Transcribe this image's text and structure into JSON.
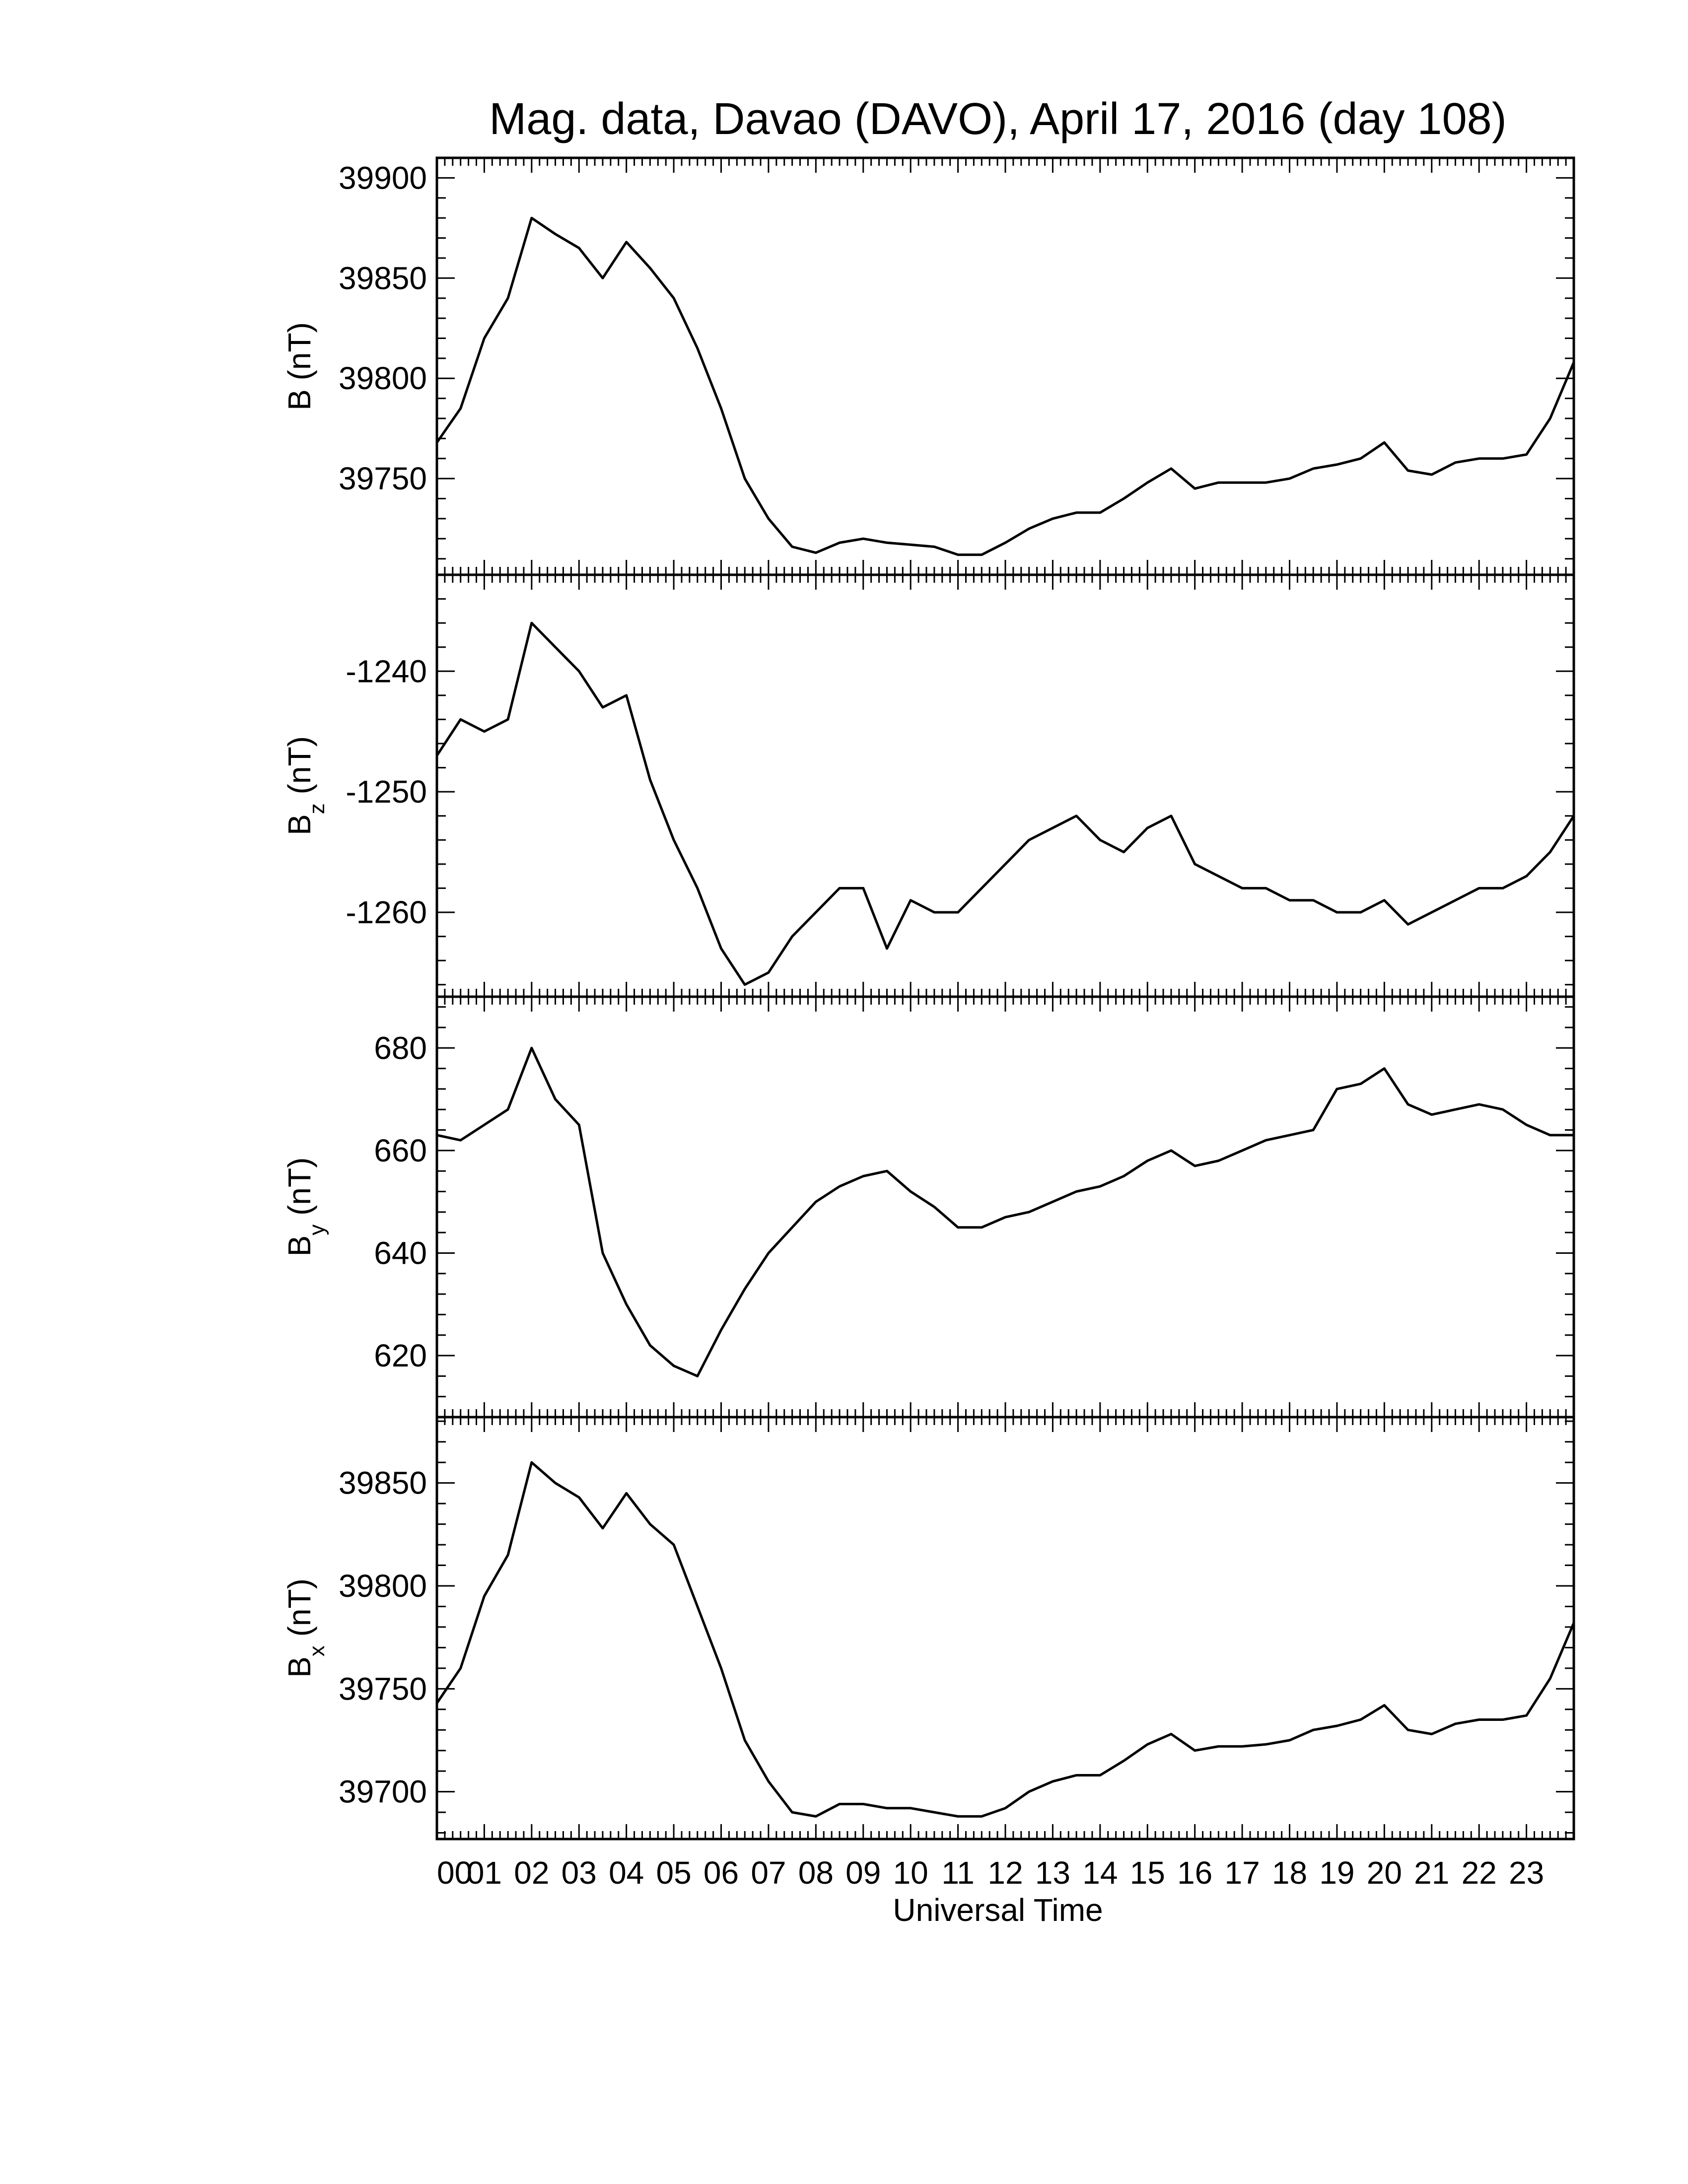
{
  "chart_data": {
    "type": "line",
    "title": "Mag. data, Davao (DAVO), April 17, 2016 (day 108)",
    "xlabel": "Universal Time",
    "x_tick_labels": [
      "00",
      "01",
      "02",
      "03",
      "04",
      "05",
      "06",
      "07",
      "08",
      "09",
      "10",
      "11",
      "12",
      "13",
      "14",
      "15",
      "16",
      "17",
      "18",
      "19",
      "20",
      "21",
      "22",
      "23"
    ],
    "xlim": [
      0,
      24
    ],
    "color": "#000000",
    "grid": false,
    "x": [
      0,
      0.5,
      1,
      1.5,
      2,
      2.5,
      3,
      3.5,
      4,
      4.5,
      5,
      5.5,
      6,
      6.5,
      7,
      7.5,
      8,
      8.5,
      9,
      9.5,
      10,
      10.5,
      11,
      11.5,
      12,
      12.5,
      13,
      13.5,
      14,
      14.5,
      15,
      15.5,
      16,
      16.5,
      17,
      17.5,
      18,
      18.5,
      19,
      19.5,
      20,
      20.5,
      21,
      21.5,
      22,
      22.5,
      23,
      23.5,
      24
    ],
    "panels": [
      {
        "ylabel_main": "B",
        "ylabel_sub": "",
        "ylabel_unit": " (nT)",
        "ylim": [
          39702,
          39910
        ],
        "yticks": [
          39750,
          39800,
          39850,
          39900
        ],
        "ytick_labels": [
          "39750",
          "39800",
          "39850",
          "39900"
        ],
        "values": [
          39768,
          39785,
          39820,
          39840,
          39880,
          39872,
          39865,
          39850,
          39868,
          39855,
          39840,
          39815,
          39785,
          39750,
          39730,
          39716,
          39713,
          39718,
          39720,
          39718,
          39717,
          39716,
          39712,
          39712,
          39718,
          39725,
          39730,
          39733,
          39733,
          39740,
          39748,
          39755,
          39745,
          39748,
          39748,
          39748,
          39750,
          39755,
          39757,
          39760,
          39768,
          39754,
          39752,
          39758,
          39760,
          39760,
          39762,
          39780,
          39808
        ]
      },
      {
        "ylabel_main": "B",
        "ylabel_sub": "z",
        "ylabel_unit": " (nT)",
        "ylim": [
          -1267,
          -1232
        ],
        "yticks": [
          -1260,
          -1250,
          -1240
        ],
        "ytick_labels": [
          "-1260",
          "-1250",
          "-1240"
        ],
        "values": [
          -1247,
          -1244,
          -1245,
          -1244,
          -1236,
          -1238,
          -1240,
          -1243,
          -1242,
          -1249,
          -1254,
          -1258,
          -1263,
          -1266,
          -1265,
          -1262,
          -1260,
          -1258,
          -1258,
          -1263,
          -1259,
          -1260,
          -1260,
          -1258,
          -1256,
          -1254,
          -1253,
          -1252,
          -1254,
          -1255,
          -1253,
          -1252,
          -1256,
          -1257,
          -1258,
          -1258,
          -1259,
          -1259,
          -1260,
          -1260,
          -1259,
          -1261,
          -1260,
          -1259,
          -1258,
          -1258,
          -1257,
          -1255,
          -1252
        ]
      },
      {
        "ylabel_main": "B",
        "ylabel_sub": "y",
        "ylabel_unit": " (nT)",
        "ylim": [
          608,
          690
        ],
        "yticks": [
          620,
          640,
          660,
          680
        ],
        "ytick_labels": [
          "620",
          "640",
          "660",
          "680"
        ],
        "values": [
          663,
          662,
          665,
          668,
          680,
          670,
          665,
          640,
          630,
          622,
          618,
          616,
          625,
          633,
          640,
          645,
          650,
          653,
          655,
          656,
          652,
          649,
          645,
          645,
          647,
          648,
          650,
          652,
          653,
          655,
          658,
          660,
          657,
          658,
          660,
          662,
          663,
          664,
          672,
          673,
          676,
          669,
          667,
          668,
          669,
          668,
          665,
          663,
          663
        ]
      },
      {
        "ylabel_main": "B",
        "ylabel_sub": "x",
        "ylabel_unit": " (nT)",
        "ylim": [
          39677,
          39882
        ],
        "yticks": [
          39700,
          39750,
          39800,
          39850
        ],
        "ytick_labels": [
          "39700",
          "39750",
          "39800",
          "39850"
        ],
        "values": [
          39743,
          39760,
          39795,
          39815,
          39860,
          39850,
          39843,
          39828,
          39845,
          39830,
          39820,
          39790,
          39760,
          39725,
          39705,
          39690,
          39688,
          39694,
          39694,
          39692,
          39692,
          39690,
          39688,
          39688,
          39692,
          39700,
          39705,
          39708,
          39708,
          39715,
          39723,
          39728,
          39720,
          39722,
          39722,
          39723,
          39725,
          39730,
          39732,
          39735,
          39742,
          39730,
          39728,
          39733,
          39735,
          39735,
          39737,
          39755,
          39782
        ]
      }
    ]
  }
}
